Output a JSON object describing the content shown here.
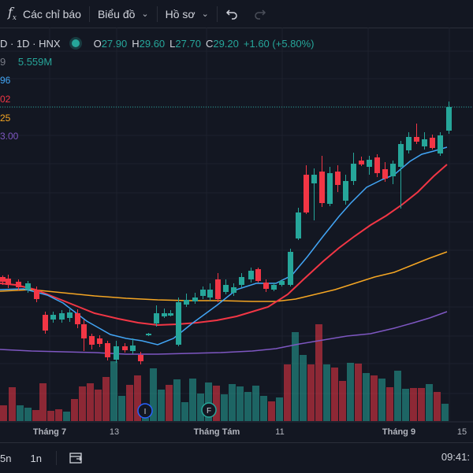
{
  "toolbar": {
    "indicators_label": "Các chỉ báo",
    "chart_label": "Biểu đồ",
    "profile_label": "Hồ sơ",
    "undo_icon": "undo-icon",
    "redo_icon": "redo-icon"
  },
  "legend": {
    "symbol": "D · 1D · HNX",
    "o_key": "O",
    "o_val": "27.90",
    "h_key": "H",
    "h_val": "29.60",
    "l_key": "L",
    "l_val": "27.70",
    "c_key": "C",
    "c_val": "29.20",
    "change": "+1.60 (+5.80%)",
    "volume_prefix": "9",
    "volume": "5.559M"
  },
  "indicator_values": [
    {
      "text": "96",
      "color": "#42a5f5"
    },
    {
      "text": "02",
      "color": "#f23645"
    },
    {
      "text": "25",
      "color": "#f5a623"
    },
    {
      "text": "3.00",
      "color": "#7e57c2"
    }
  ],
  "xaxis": [
    {
      "label": "Tháng 7",
      "bold": true
    },
    {
      "label": "13",
      "bold": false
    },
    {
      "label": "Tháng Tám",
      "bold": true
    },
    {
      "label": "11",
      "bold": false
    },
    {
      "label": "Tháng 9",
      "bold": true
    },
    {
      "label": "15",
      "bold": false
    }
  ],
  "events": [
    {
      "letter": "I",
      "color": "#2962ff"
    },
    {
      "letter": "F",
      "color": "#26a69a"
    }
  ],
  "bottom": {
    "range_6m": "5n",
    "range_1y": "1n",
    "calendar_icon": "goto-date-icon",
    "clock": "09:41:"
  },
  "colors": {
    "up": "#26a69a",
    "down": "#f23645",
    "ma_blue": "#42a5f5",
    "ma_red": "#f23645",
    "ma_orange": "#f5a623",
    "ma_purple": "#7e57c2"
  },
  "chart_data": {
    "type": "candlestick",
    "candles": [
      [
        0,
        "dn",
        352,
        358,
        350,
        362
      ],
      [
        7,
        "dn",
        354,
        362,
        349,
        366
      ],
      [
        20,
        "dn",
        358,
        365,
        355,
        369
      ],
      [
        32,
        "up",
        360,
        368,
        357,
        372
      ],
      [
        43,
        "dn",
        368,
        380,
        364,
        384
      ],
      [
        54,
        "dn",
        400,
        420,
        396,
        424
      ],
      [
        64,
        "up",
        400,
        406,
        396,
        410
      ],
      [
        75,
        "up",
        398,
        406,
        394,
        410
      ],
      [
        85,
        "up",
        397,
        404,
        393,
        409
      ],
      [
        95,
        "dn",
        398,
        412,
        393,
        417
      ],
      [
        103,
        "dn",
        412,
        430,
        406,
        446
      ],
      [
        113,
        "dn",
        427,
        438,
        424,
        444
      ],
      [
        123,
        "dn",
        430,
        437,
        426,
        441
      ],
      [
        133,
        "dn",
        436,
        454,
        433,
        458
      ],
      [
        144,
        "up",
        440,
        457,
        433,
        461
      ],
      [
        155,
        "dn",
        440,
        445,
        436,
        448
      ],
      [
        165,
        "up",
        439,
        446,
        430,
        450
      ],
      [
        175,
        "dn",
        451,
        459,
        447,
        463
      ],
      [
        185,
        "up",
        424,
        426,
        423,
        427
      ],
      [
        195,
        "up",
        398,
        411,
        388,
        415
      ],
      [
        205,
        "up",
        398,
        402,
        392,
        404
      ],
      [
        213,
        "up",
        398,
        401,
        394,
        402
      ],
      [
        223,
        "up",
        384,
        438,
        378,
        440
      ],
      [
        233,
        "up",
        381,
        387,
        373,
        390
      ],
      [
        244,
        "up",
        378,
        383,
        372,
        386
      ],
      [
        254,
        "up",
        368,
        376,
        364,
        380
      ],
      [
        263,
        "up",
        368,
        378,
        360,
        382
      ],
      [
        273,
        "dn",
        355,
        380,
        347,
        384
      ],
      [
        283,
        "up",
        362,
        371,
        355,
        374
      ],
      [
        293,
        "up",
        365,
        372,
        360,
        376
      ],
      [
        303,
        "up",
        352,
        362,
        347,
        365
      ],
      [
        315,
        "up",
        344,
        355,
        340,
        359
      ],
      [
        324,
        "dn",
        342,
        357,
        340,
        359
      ],
      [
        334,
        "dn",
        359,
        367,
        355,
        371
      ],
      [
        344,
        "up",
        362,
        368,
        359,
        370
      ],
      [
        354,
        "up",
        357,
        362,
        355,
        364
      ],
      [
        365,
        "up",
        320,
        362,
        316,
        364
      ],
      [
        375,
        "up",
        270,
        303,
        264,
        305
      ],
      [
        385,
        "dn",
        222,
        270,
        210,
        272
      ],
      [
        395,
        "up",
        222,
        233,
        214,
        280
      ],
      [
        405,
        "dn",
        218,
        258,
        198,
        263
      ],
      [
        415,
        "up",
        220,
        259,
        212,
        262
      ],
      [
        425,
        "dn",
        218,
        235,
        210,
        244
      ],
      [
        435,
        "up",
        230,
        255,
        222,
        260
      ],
      [
        445,
        "up",
        208,
        230,
        194,
        235
      ],
      [
        455,
        "dn",
        204,
        209,
        199,
        211
      ],
      [
        465,
        "up",
        203,
        212,
        198,
        222
      ],
      [
        475,
        "dn",
        200,
        220,
        196,
        225
      ],
      [
        485,
        "dn",
        215,
        227,
        206,
        231
      ],
      [
        495,
        "up",
        208,
        224,
        204,
        234
      ],
      [
        505,
        "up",
        183,
        212,
        179,
        265
      ],
      [
        515,
        "up",
        174,
        191,
        168,
        195
      ],
      [
        525,
        "dn",
        174,
        180,
        157,
        183
      ],
      [
        535,
        "up",
        177,
        186,
        168,
        190
      ],
      [
        545,
        "dn",
        175,
        188,
        171,
        190
      ],
      [
        555,
        "up",
        172,
        195,
        168,
        198
      ],
      [
        566,
        "up",
        136,
        166,
        129,
        170
      ]
    ],
    "ma_blue": [
      [
        0,
        368
      ],
      [
        30,
        367
      ],
      [
        60,
        375
      ],
      [
        80,
        385
      ],
      [
        110,
        408
      ],
      [
        140,
        425
      ],
      [
        160,
        430
      ],
      [
        180,
        433
      ],
      [
        200,
        438
      ],
      [
        220,
        430
      ],
      [
        245,
        410
      ],
      [
        275,
        388
      ],
      [
        300,
        368
      ],
      [
        325,
        360
      ],
      [
        350,
        360
      ],
      [
        370,
        350
      ],
      [
        390,
        326
      ],
      [
        410,
        300
      ],
      [
        430,
        275
      ],
      [
        445,
        258
      ],
      [
        465,
        238
      ],
      [
        485,
        228
      ],
      [
        500,
        222
      ],
      [
        520,
        205
      ],
      [
        535,
        196
      ],
      [
        550,
        192
      ],
      [
        567,
        187
      ]
    ],
    "ma_red": [
      [
        0,
        360
      ],
      [
        20,
        362
      ],
      [
        45,
        368
      ],
      [
        70,
        378
      ],
      [
        95,
        388
      ],
      [
        120,
        398
      ],
      [
        150,
        405
      ],
      [
        175,
        410
      ],
      [
        200,
        413
      ],
      [
        225,
        412
      ],
      [
        250,
        410
      ],
      [
        275,
        407
      ],
      [
        300,
        402
      ],
      [
        320,
        396
      ],
      [
        340,
        390
      ],
      [
        365,
        374
      ],
      [
        385,
        355
      ],
      [
        410,
        332
      ],
      [
        430,
        315
      ],
      [
        450,
        300
      ],
      [
        470,
        286
      ],
      [
        490,
        274
      ],
      [
        510,
        260
      ],
      [
        530,
        244
      ],
      [
        550,
        224
      ],
      [
        567,
        209
      ]
    ],
    "ma_orange": [
      [
        0,
        370
      ],
      [
        40,
        368
      ],
      [
        80,
        372
      ],
      [
        120,
        376
      ],
      [
        160,
        379
      ],
      [
        200,
        381
      ],
      [
        240,
        382
      ],
      [
        280,
        382
      ],
      [
        320,
        383
      ],
      [
        350,
        383
      ],
      [
        375,
        380
      ],
      [
        400,
        374
      ],
      [
        425,
        368
      ],
      [
        450,
        360
      ],
      [
        475,
        352
      ],
      [
        500,
        346
      ],
      [
        525,
        336
      ],
      [
        545,
        328
      ],
      [
        567,
        320
      ]
    ],
    "ma_purple": [
      [
        0,
        444
      ],
      [
        40,
        446
      ],
      [
        80,
        447
      ],
      [
        120,
        448
      ],
      [
        160,
        450
      ],
      [
        200,
        450
      ],
      [
        240,
        449
      ],
      [
        280,
        448
      ],
      [
        320,
        446
      ],
      [
        350,
        443
      ],
      [
        380,
        437
      ],
      [
        410,
        432
      ],
      [
        440,
        427
      ],
      [
        470,
        424
      ],
      [
        500,
        417
      ],
      [
        525,
        410
      ],
      [
        545,
        404
      ],
      [
        567,
        396
      ]
    ],
    "volumes": [
      [
        0,
        "dn",
        20
      ],
      [
        11,
        "dn",
        43
      ],
      [
        21,
        "up",
        20
      ],
      [
        31,
        "up",
        17
      ],
      [
        41,
        "dn",
        14
      ],
      [
        50,
        "dn",
        48
      ],
      [
        60,
        "dn",
        13
      ],
      [
        70,
        "dn",
        15
      ],
      [
        80,
        "up",
        12
      ],
      [
        90,
        "dn",
        28
      ],
      [
        100,
        "dn",
        44
      ],
      [
        110,
        "dn",
        48
      ],
      [
        120,
        "dn",
        40
      ],
      [
        130,
        "dn",
        56
      ],
      [
        140,
        "up",
        76
      ],
      [
        150,
        "up",
        32
      ],
      [
        160,
        "dn",
        46
      ],
      [
        170,
        "dn",
        58
      ],
      [
        180,
        "up",
        4
      ],
      [
        190,
        "up",
        67
      ],
      [
        200,
        "up",
        40
      ],
      [
        210,
        "dn",
        46
      ],
      [
        220,
        "up",
        53
      ],
      [
        230,
        "up",
        24
      ],
      [
        240,
        "up",
        54
      ],
      [
        250,
        "up",
        35
      ],
      [
        260,
        "up",
        49
      ],
      [
        270,
        "dn",
        45
      ],
      [
        280,
        "up",
        34
      ],
      [
        290,
        "up",
        47
      ],
      [
        300,
        "up",
        44
      ],
      [
        310,
        "up",
        37
      ],
      [
        320,
        "up",
        45
      ],
      [
        330,
        "up",
        32
      ],
      [
        340,
        "dn",
        25
      ],
      [
        350,
        "up",
        30
      ],
      [
        360,
        "dn",
        72
      ],
      [
        370,
        "up",
        113
      ],
      [
        380,
        "up",
        84
      ],
      [
        390,
        "dn",
        72
      ],
      [
        400,
        "dn",
        123
      ],
      [
        410,
        "up",
        72
      ],
      [
        420,
        "dn",
        68
      ],
      [
        430,
        "dn",
        51
      ],
      [
        440,
        "up",
        74
      ],
      [
        450,
        "dn",
        73
      ],
      [
        460,
        "up",
        61
      ],
      [
        470,
        "dn",
        58
      ],
      [
        480,
        "up",
        54
      ],
      [
        490,
        "dn",
        43
      ],
      [
        500,
        "up",
        64
      ],
      [
        510,
        "up",
        41
      ],
      [
        520,
        "dn",
        42
      ],
      [
        530,
        "dn",
        42
      ],
      [
        540,
        "up",
        47
      ],
      [
        550,
        "dn",
        37
      ],
      [
        560,
        "up",
        22
      ]
    ]
  }
}
